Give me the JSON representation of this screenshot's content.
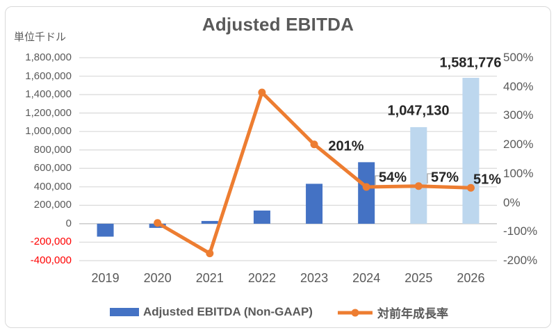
{
  "chart_data": {
    "type": "combo",
    "title": "Adjusted EBITDA",
    "unit_label": "単位千ドル",
    "categories": [
      "2019",
      "2020",
      "2021",
      "2022",
      "2023",
      "2024",
      "2025",
      "2026"
    ],
    "series": [
      {
        "name": "Adjusted EBITDA (Non-GAAP)",
        "type": "bar",
        "axis": "left",
        "values": [
          -140000,
          -45000,
          30000,
          143000,
          433000,
          667000,
          1047130,
          1581776
        ],
        "bar_colors": [
          "#4472C4",
          "#4472C4",
          "#4472C4",
          "#4472C4",
          "#4472C4",
          "#4472C4",
          "#BDD7EE",
          "#BDD7EE"
        ],
        "data_labels": {
          "6": "1,047,130",
          "7": "1,581,776"
        }
      },
      {
        "name": "対前年成長率",
        "type": "line",
        "axis": "right",
        "color": "#ED7D31",
        "values": [
          null,
          -70,
          -175,
          380,
          201,
          54,
          57,
          51
        ],
        "data_labels": {
          "4": "201%",
          "5": "54%",
          "6": "57%",
          "7": "51%"
        }
      }
    ],
    "left_axis": {
      "min": -400000,
      "max": 1800000,
      "step": 200000,
      "tick_labels": [
        "1,800,000",
        "1,600,000",
        "1,400,000",
        "1,200,000",
        "1,000,000",
        "800,000",
        "600,000",
        "400,000",
        "200,000",
        "0",
        "-200,000",
        "-400,000"
      ],
      "negative_tick_color": "#FF0000"
    },
    "right_axis": {
      "min": -200,
      "max": 500,
      "step": 100,
      "tick_labels": [
        "500%",
        "400%",
        "300%",
        "200%",
        "100%",
        "0%",
        "-100%",
        "-200%"
      ]
    },
    "grid": true,
    "legend_position": "bottom",
    "colors": {
      "bar_primary": "#4472C4",
      "bar_forecast": "#BDD7EE",
      "line": "#ED7D31",
      "gridline": "#D9D9D9",
      "zero_line": "#BFBFBF",
      "axis_text": "#595959",
      "negative_tick": "#FF0000",
      "data_label": "#262626",
      "title_text": "#595959",
      "leader_line": "#A6A6A6"
    }
  }
}
